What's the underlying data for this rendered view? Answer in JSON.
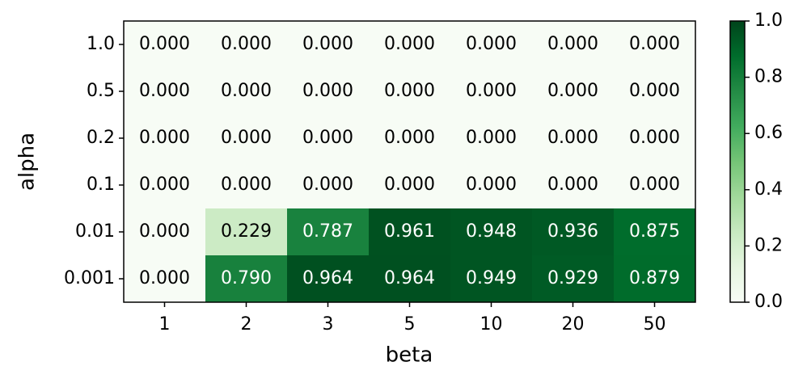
{
  "chart_data": {
    "type": "heatmap",
    "xlabel": "beta",
    "ylabel": "alpha",
    "x_categories": [
      "1",
      "2",
      "3",
      "5",
      "10",
      "20",
      "50"
    ],
    "y_categories": [
      "1.0",
      "0.5",
      "0.2",
      "0.1",
      "0.01",
      "0.001"
    ],
    "values": [
      [
        0,
        0,
        0,
        0,
        0,
        0,
        0
      ],
      [
        0,
        0,
        0,
        0,
        0,
        0,
        0
      ],
      [
        0,
        0,
        0,
        0,
        0,
        0,
        0
      ],
      [
        0,
        0,
        0,
        0,
        0,
        0,
        0
      ],
      [
        0,
        0.229,
        0.787,
        0.961,
        0.948,
        0.936,
        0.875
      ],
      [
        0,
        0.79,
        0.964,
        0.964,
        0.949,
        0.929,
        0.879
      ]
    ],
    "value_labels": [
      [
        "0.000",
        "0.000",
        "0.000",
        "0.000",
        "0.000",
        "0.000",
        "0.000"
      ],
      [
        "0.000",
        "0.000",
        "0.000",
        "0.000",
        "0.000",
        "0.000",
        "0.000"
      ],
      [
        "0.000",
        "0.000",
        "0.000",
        "0.000",
        "0.000",
        "0.000",
        "0.000"
      ],
      [
        "0.000",
        "0.000",
        "0.000",
        "0.000",
        "0.000",
        "0.000",
        "0.000"
      ],
      [
        "0.000",
        "0.229",
        "0.787",
        "0.961",
        "0.948",
        "0.936",
        "0.875"
      ],
      [
        "0.000",
        "0.790",
        "0.964",
        "0.964",
        "0.949",
        "0.929",
        "0.879"
      ]
    ],
    "colormap": [
      "#f7fcf5",
      "#e5f5e0",
      "#c7e9c0",
      "#a1d99b",
      "#74c476",
      "#41ab5d",
      "#238b45",
      "#006d2c",
      "#00441b"
    ],
    "clim": [
      {
        "value": 0,
        "label": "0.0"
      },
      {
        "value": 1,
        "label": "1.0"
      }
    ],
    "cticks": [
      {
        "value": 0,
        "label": "0.0"
      },
      0.2,
      0.4,
      0.6,
      0.8,
      {
        "value": 1,
        "label": "1.0"
      }
    ]
  }
}
